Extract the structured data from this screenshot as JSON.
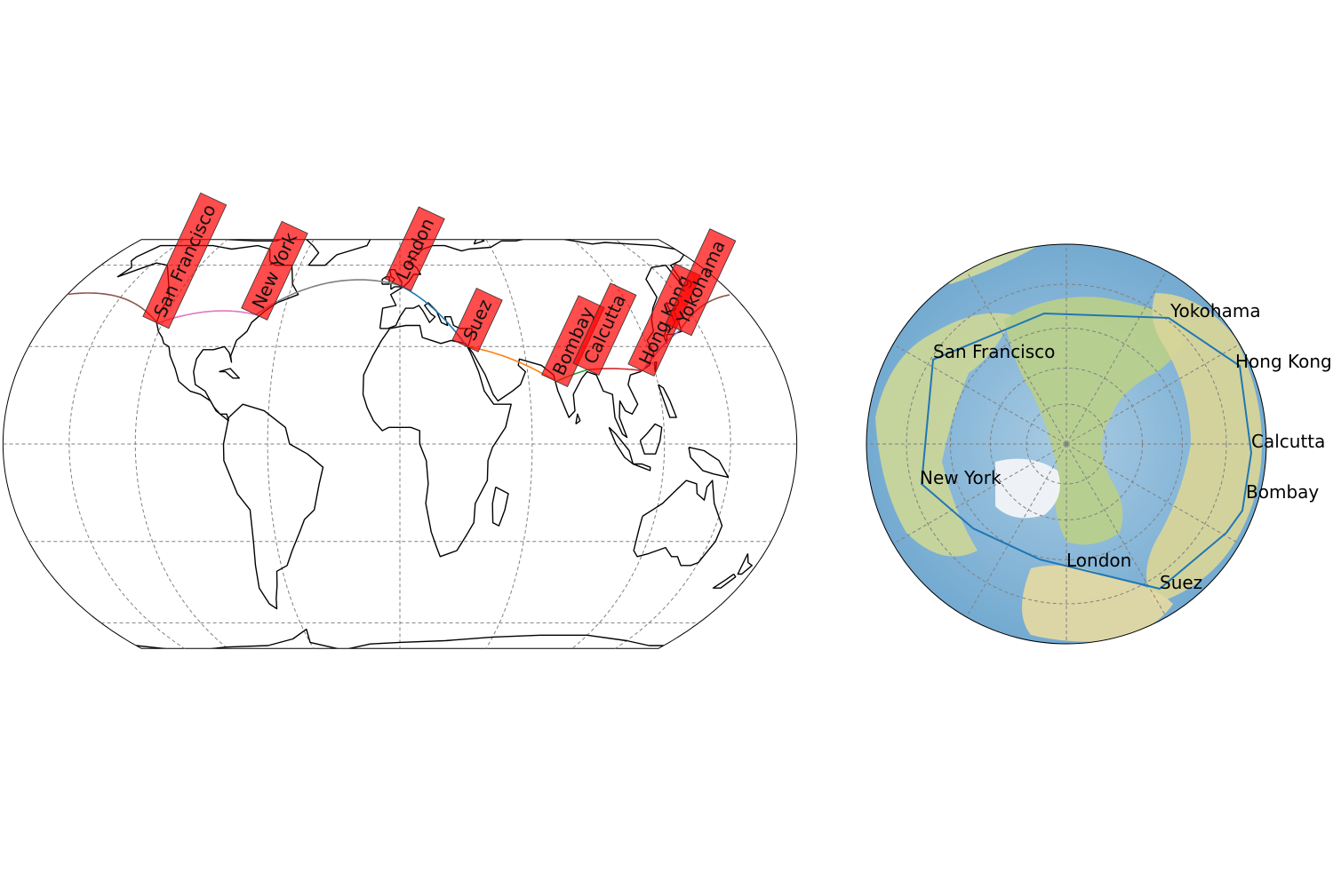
{
  "left_map": {
    "projection": "Equal Earth",
    "gridlines": "dashed",
    "cities": [
      {
        "name": "San Francisco",
        "lon": -122.4,
        "lat": 37.8
      },
      {
        "name": "New York",
        "lon": -74.0,
        "lat": 40.7
      },
      {
        "name": "London",
        "lon": -0.1,
        "lat": 51.5
      },
      {
        "name": "Suez",
        "lon": 32.5,
        "lat": 30.0
      },
      {
        "name": "Bombay",
        "lon": 72.8,
        "lat": 19.0
      },
      {
        "name": "Calcutta",
        "lon": 88.4,
        "lat": 22.6
      },
      {
        "name": "Hong Kong",
        "lon": 114.2,
        "lat": 22.3
      },
      {
        "name": "Yokohama",
        "lon": 139.6,
        "lat": 35.4
      }
    ],
    "route_colors": [
      "#1f77b4",
      "#ff7f0e",
      "#2ca02c",
      "#d62728",
      "#9467bd",
      "#8c564b",
      "#e377c2",
      "#7f7f7f"
    ],
    "label_box_color": "#ff0000"
  },
  "right_map": {
    "projection": "North Polar",
    "route_color": "#1f77b4",
    "cities": [
      {
        "name": "San Francisco"
      },
      {
        "name": "New York"
      },
      {
        "name": "London"
      },
      {
        "name": "Suez"
      },
      {
        "name": "Bombay"
      },
      {
        "name": "Calcutta"
      },
      {
        "name": "Hong Kong"
      },
      {
        "name": "Yokohama"
      }
    ]
  }
}
